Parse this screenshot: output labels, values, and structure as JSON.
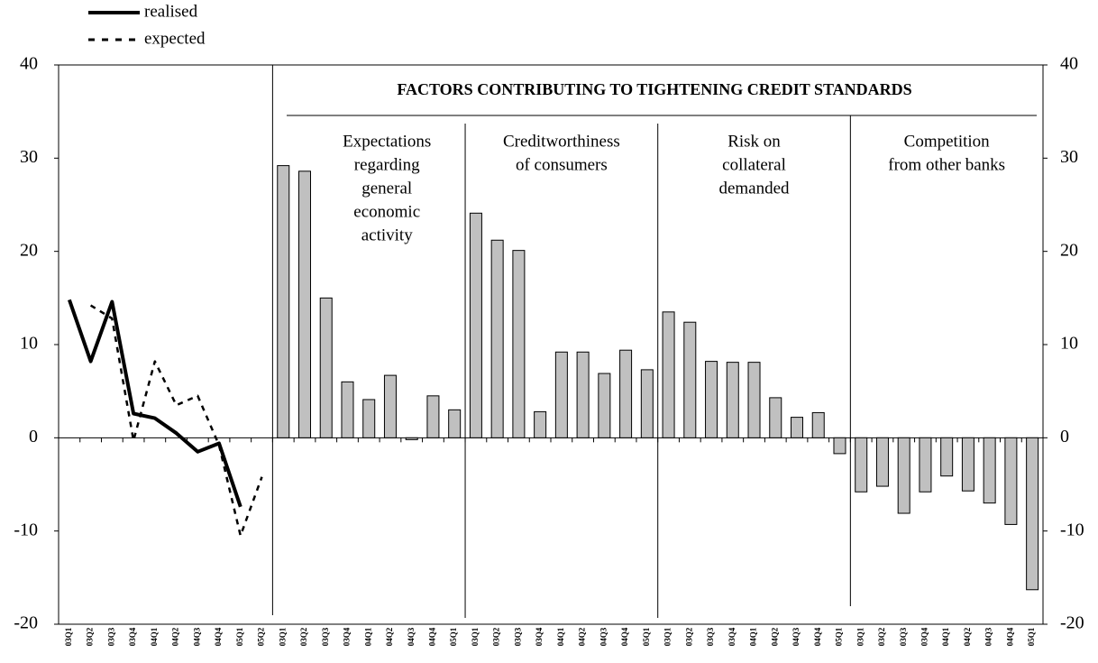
{
  "chart_data": {
    "type": "combo",
    "title": "FACTORS CONTRIBUTING TO TIGHTENING CREDIT STANDARDS",
    "ylim": [
      -20,
      40
    ],
    "yticks": [
      -20,
      -10,
      0,
      10,
      20,
      30,
      40
    ],
    "line_panel": {
      "categories": [
        "03Q1",
        "03Q2",
        "03Q3",
        "03Q4",
        "04Q1",
        "04Q2",
        "04Q3",
        "04Q4",
        "05Q1",
        "05Q2"
      ],
      "series": [
        {
          "name": "realised",
          "color": "#000000",
          "dash": false,
          "values": [
            14.8,
            8.2,
            14.6,
            2.6,
            2.1,
            0.5,
            -1.5,
            -0.6,
            -7.4,
            null
          ]
        },
        {
          "name": "expected",
          "color": "#000000",
          "dash": true,
          "values": [
            null,
            14.2,
            12.8,
            -0.3,
            8.2,
            3.5,
            4.5,
            -0.8,
            -10.5,
            -4.2
          ]
        }
      ]
    },
    "bar_color": "#c0c0c0",
    "bar_panels": [
      {
        "label": [
          "Expectations",
          "regarding",
          "general",
          "economic",
          "activity"
        ],
        "categories": [
          "03Q1",
          "03Q2",
          "03Q3",
          "03Q4",
          "04Q1",
          "04Q2",
          "04Q3",
          "04Q4",
          "05Q1"
        ],
        "values": [
          29.2,
          28.6,
          15.0,
          6.0,
          4.1,
          6.7,
          -0.2,
          4.5,
          3.0
        ]
      },
      {
        "label": [
          "Creditworthiness",
          "of consumers"
        ],
        "categories": [
          "03Q1",
          "03Q2",
          "03Q3",
          "03Q4",
          "04Q1",
          "04Q2",
          "04Q3",
          "04Q4",
          "05Q1"
        ],
        "values": [
          24.1,
          21.2,
          20.1,
          2.8,
          9.2,
          9.2,
          6.9,
          9.4,
          7.3
        ]
      },
      {
        "label": [
          "Risk on",
          "collateral",
          "demanded"
        ],
        "categories": [
          "03Q1",
          "03Q2",
          "03Q3",
          "03Q4",
          "04Q1",
          "04Q2",
          "04Q3",
          "04Q4",
          "05Q1"
        ],
        "values": [
          13.5,
          12.4,
          8.2,
          8.1,
          8.1,
          4.3,
          2.2,
          2.7,
          -1.7
        ]
      },
      {
        "label": [
          "Competition",
          "from other banks"
        ],
        "categories": [
          "03Q1",
          "03Q2",
          "03Q3",
          "03Q4",
          "04Q1",
          "04Q2",
          "04Q3",
          "04Q4",
          "05Q1"
        ],
        "values": [
          -5.8,
          -5.2,
          -8.1,
          -5.8,
          -4.1,
          -5.7,
          -7.0,
          -9.3,
          -16.3
        ]
      }
    ]
  }
}
